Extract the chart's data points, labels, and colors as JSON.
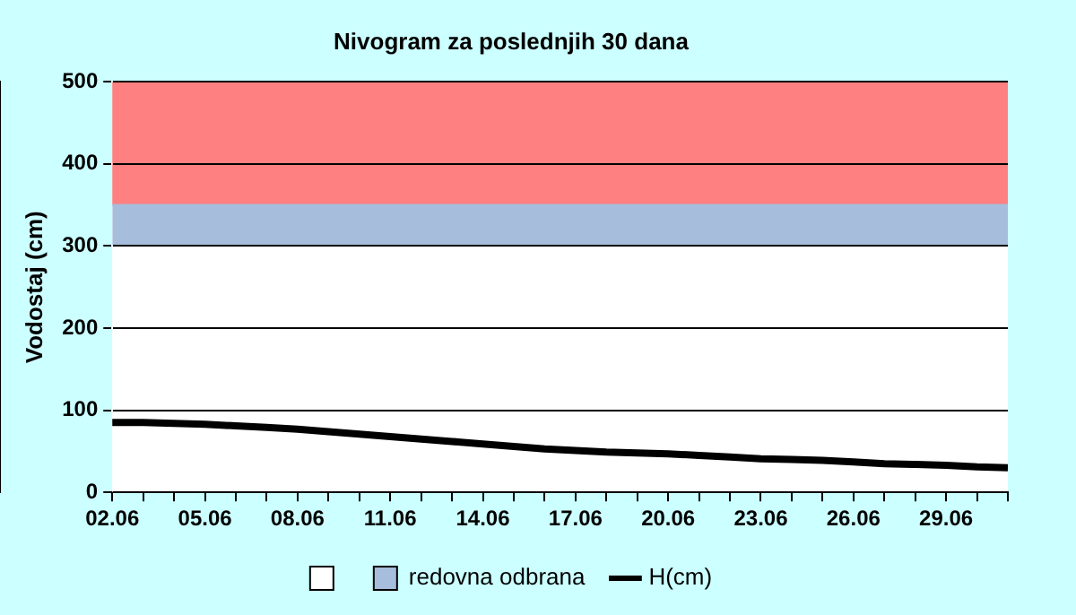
{
  "chart_data": {
    "type": "area",
    "title": "Nivogram za poslednjih 30 dana",
    "ylabel": "Vodostaj (cm)",
    "categories": [
      "02.06",
      null,
      null,
      "05.06",
      null,
      null,
      "08.06",
      null,
      null,
      "11.06",
      null,
      null,
      "14.06",
      null,
      null,
      "17.06",
      null,
      null,
      "20.06",
      null,
      null,
      "23.06",
      null,
      null,
      "26.06",
      null,
      null,
      "29.06",
      null,
      null
    ],
    "stacked": true,
    "series": [
      {
        "color": "#ffffff",
        "values": [
          300,
          300,
          300,
          300,
          300,
          300,
          300,
          300,
          300,
          300,
          300,
          300,
          300,
          300,
          300,
          300,
          300,
          300,
          300,
          300,
          300,
          300,
          300,
          300,
          300,
          300,
          300,
          300,
          300,
          300
        ]
      },
      {
        "name": "redovna odbrana",
        "color": "#a6bddb",
        "values": [
          50,
          50,
          50,
          50,
          50,
          50,
          50,
          50,
          50,
          50,
          50,
          50,
          50,
          50,
          50,
          50,
          50,
          50,
          50,
          50,
          50,
          50,
          50,
          50,
          50,
          50,
          50,
          50,
          50,
          50
        ]
      },
      {
        "name": "H(cm)",
        "type": "line",
        "color": "#000000",
        "values": [
          85,
          85,
          84,
          83,
          81,
          79,
          77,
          74,
          71,
          68,
          65,
          62,
          59,
          56,
          53,
          51,
          49,
          48,
          47,
          45,
          43,
          41,
          40,
          39,
          37,
          35,
          34,
          33,
          31,
          30
        ]
      }
    ],
    "bands": [
      {
        "axis": "y",
        "from": 350,
        "to": 500,
        "color": "#ff8080"
      }
    ],
    "ylim": [
      0,
      500
    ],
    "yticks": [
      0,
      100,
      200,
      300,
      400,
      500
    ],
    "grid": "y",
    "legend": "bottom"
  }
}
